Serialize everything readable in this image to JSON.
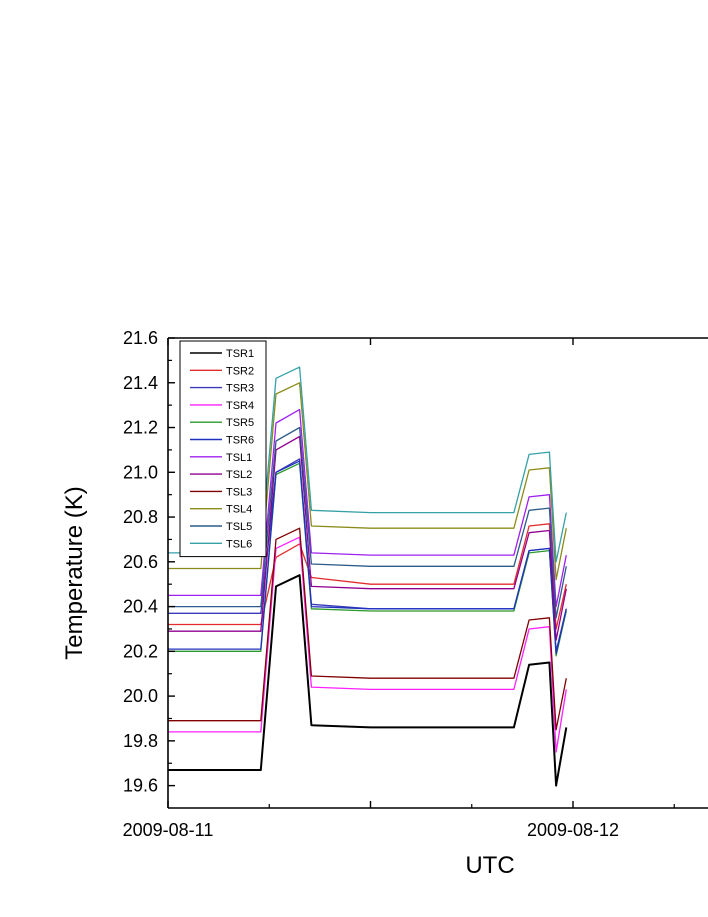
{
  "chart_data": {
    "type": "line",
    "title": "",
    "xlabel": "UTC",
    "ylabel": "Temperature (K)",
    "ylim": [
      19.5,
      21.6
    ],
    "y_ticks": [
      "19.6",
      "19.8",
      "20.0",
      "20.2",
      "20.4",
      "20.6",
      "20.8",
      "21.0",
      "21.2",
      "21.4",
      "21.6"
    ],
    "x_unit": "hours since start of 2009-08-11 (UTC)",
    "xlim": [
      0,
      32
    ],
    "x_tick_labels": [
      {
        "x": 0,
        "label": "2009-08-11"
      },
      {
        "x": 24,
        "label": "2009-08-12"
      }
    ],
    "grid": false,
    "legend_position": "top-left",
    "series": [
      {
        "name": "TSR1",
        "color": "#000000",
        "values": [
          19.67,
          19.67,
          20.49,
          20.54,
          19.87,
          19.86,
          19.86,
          20.14,
          20.15,
          19.6,
          19.86
        ]
      },
      {
        "name": "TSR2",
        "color": "#e32d2d",
        "values": [
          20.32,
          20.32,
          20.62,
          20.68,
          20.53,
          20.5,
          20.5,
          20.76,
          20.77,
          20.3,
          20.5
        ]
      },
      {
        "name": "TSR3",
        "color": "#3a3ab8",
        "values": [
          20.37,
          20.37,
          21.0,
          21.06,
          20.41,
          20.39,
          20.39,
          20.65,
          20.66,
          20.2,
          20.39
        ]
      },
      {
        "name": "TSR4",
        "color": "#ff20ff",
        "values": [
          19.84,
          19.84,
          20.66,
          20.71,
          20.04,
          20.03,
          20.03,
          20.3,
          20.31,
          19.75,
          20.03
        ]
      },
      {
        "name": "TSR5",
        "color": "#2a9a2a",
        "values": [
          20.2,
          20.2,
          20.99,
          21.04,
          20.39,
          20.38,
          20.38,
          20.64,
          20.65,
          20.18,
          20.38
        ]
      },
      {
        "name": "TSR6",
        "color": "#2030c0",
        "values": [
          20.21,
          20.21,
          21.0,
          21.05,
          20.4,
          20.39,
          20.39,
          20.65,
          20.66,
          20.19,
          20.39
        ]
      },
      {
        "name": "TSL1",
        "color": "#a020f0",
        "values": [
          20.45,
          20.45,
          21.22,
          21.28,
          20.64,
          20.63,
          20.63,
          20.89,
          20.9,
          20.4,
          20.63
        ]
      },
      {
        "name": "TSL2",
        "color": "#900090",
        "values": [
          20.29,
          20.29,
          21.1,
          21.16,
          20.49,
          20.48,
          20.48,
          20.73,
          20.74,
          20.25,
          20.48
        ]
      },
      {
        "name": "TSL3",
        "color": "#800000",
        "values": [
          19.89,
          19.89,
          20.7,
          20.75,
          20.09,
          20.08,
          20.08,
          20.34,
          20.35,
          19.85,
          20.08
        ]
      },
      {
        "name": "TSL4",
        "color": "#8b8b1a",
        "values": [
          20.57,
          20.57,
          21.35,
          21.4,
          20.76,
          20.75,
          20.75,
          21.01,
          21.02,
          20.52,
          20.75
        ]
      },
      {
        "name": "TSL5",
        "color": "#2e5c8a",
        "values": [
          20.4,
          20.4,
          21.14,
          21.2,
          20.59,
          20.58,
          20.58,
          20.83,
          20.84,
          20.35,
          20.58
        ]
      },
      {
        "name": "TSL6",
        "color": "#35a0a8",
        "values": [
          20.64,
          20.64,
          21.42,
          21.47,
          20.83,
          20.82,
          20.82,
          21.08,
          21.09,
          20.6,
          20.82
        ]
      }
    ],
    "x": [
      0,
      5.5,
      6.4,
      7.8,
      8.5,
      12,
      20.5,
      21.4,
      22.6,
      23.0,
      23.6
    ]
  }
}
